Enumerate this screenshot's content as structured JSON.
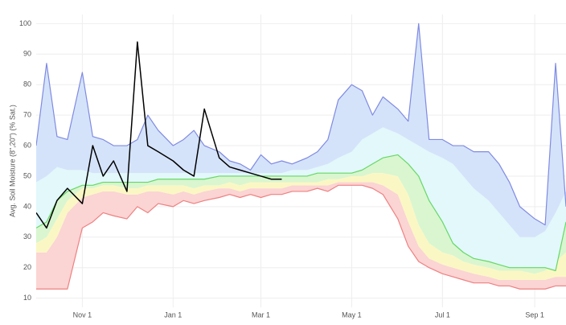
{
  "chart_data": {
    "type": "line",
    "y_label": "Avg. Soil Moisture (8\",20\") (% Sat.)",
    "x": [
      "Oct 1",
      "Oct 8",
      "Oct 15",
      "Oct 22",
      "Nov 1",
      "Nov 8",
      "Nov 15",
      "Nov 22",
      "Dec 1",
      "Dec 8",
      "Dec 15",
      "Dec 22",
      "Jan 1",
      "Jan 8",
      "Jan 15",
      "Jan 22",
      "Feb 1",
      "Feb 8",
      "Feb 15",
      "Feb 22",
      "Mar 1",
      "Mar 8",
      "Mar 15",
      "Mar 22",
      "Apr 1",
      "Apr 8",
      "Apr 15",
      "Apr 22",
      "May 1",
      "May 8",
      "May 15",
      "May 22",
      "Jun 1",
      "Jun 8",
      "Jun 15",
      "Jun 22",
      "Jul 1",
      "Jul 8",
      "Jul 15",
      "Jul 22",
      "Aug 1",
      "Aug 8",
      "Aug 15",
      "Aug 22",
      "Sep 1",
      "Sep 8",
      "Sep 15",
      "Sep 22"
    ],
    "ylim": [
      7,
      103
    ],
    "yticks": [
      10,
      20,
      30,
      40,
      50,
      60,
      70,
      80,
      90,
      100
    ],
    "xticks": [
      "Nov 1",
      "Jan 1",
      "Mar 1",
      "May 1",
      "Jul 1",
      "Sep 1"
    ],
    "grid": true,
    "series": [
      {
        "color": "#ef8080",
        "values": [
          13,
          13,
          13,
          13,
          33,
          35,
          38,
          37,
          36,
          40,
          38,
          41,
          40,
          42,
          41,
          42,
          43,
          44,
          43,
          44,
          43,
          44,
          44,
          45,
          45,
          46,
          45,
          47,
          47,
          47,
          46,
          44,
          36,
          27,
          22,
          20,
          18,
          17,
          16,
          15,
          15,
          14,
          14,
          13,
          13,
          13,
          14,
          14
        ]
      },
      {
        "fill": "#fbd4d4",
        "values": [
          25,
          25,
          30,
          38,
          43,
          44,
          45,
          45,
          44,
          44,
          45,
          45,
          44,
          45,
          44,
          45,
          46,
          46,
          45,
          46,
          46,
          46,
          46,
          47,
          47,
          47,
          47,
          48,
          48,
          48,
          48,
          47,
          44,
          35,
          27,
          23,
          21,
          20,
          19,
          18,
          17,
          16,
          16,
          16,
          16,
          16,
          17,
          17
        ]
      },
      {
        "fill": "#fbf7c4",
        "values": [
          28,
          30,
          36,
          42,
          46,
          46,
          47,
          47,
          46,
          46,
          47,
          47,
          47,
          47,
          46,
          47,
          47,
          48,
          47,
          48,
          48,
          48,
          48,
          48,
          48,
          48,
          49,
          49,
          50,
          50,
          51,
          51,
          50,
          44,
          34,
          28,
          25,
          24,
          22,
          21,
          20,
          19,
          19,
          19,
          18,
          19,
          22,
          25
        ]
      },
      {
        "color": "#66d866",
        "fill": "#d9f6d0",
        "values": [
          33,
          35,
          42,
          45,
          47,
          47,
          48,
          48,
          48,
          48,
          48,
          49,
          49,
          49,
          49,
          49,
          50,
          50,
          50,
          50,
          50,
          50,
          50,
          50,
          50,
          51,
          51,
          51,
          51,
          52,
          54,
          56,
          57,
          54,
          50,
          42,
          35,
          28,
          25,
          23,
          22,
          21,
          20,
          20,
          20,
          20,
          19,
          35
        ]
      },
      {
        "fill": "#e2f8fb",
        "values": [
          48,
          50,
          53,
          52,
          52,
          51,
          51,
          51,
          51,
          51,
          51,
          51,
          51,
          51,
          51,
          51,
          51,
          51,
          51,
          51,
          51,
          51,
          51,
          52,
          52,
          53,
          54,
          56,
          58,
          62,
          64,
          66,
          64,
          62,
          60,
          58,
          56,
          54,
          50,
          46,
          42,
          38,
          34,
          30,
          30,
          32,
          38,
          45
        ]
      },
      {
        "color": "#7f8ae2",
        "fill": "#d5e3fa",
        "values": [
          60,
          87,
          63,
          62,
          84,
          63,
          62,
          60,
          60,
          62,
          70,
          65,
          60,
          62,
          65,
          60,
          58,
          55,
          54,
          52,
          57,
          54,
          55,
          54,
          56,
          58,
          62,
          75,
          80,
          78,
          70,
          76,
          72,
          68,
          100,
          62,
          62,
          60,
          60,
          58,
          58,
          54,
          48,
          40,
          36,
          34,
          87,
          40
        ]
      },
      {
        "color": "#000000",
        "values": [
          38,
          33,
          42,
          46,
          41,
          60,
          50,
          55,
          45,
          94,
          60,
          58,
          55,
          52,
          50,
          72,
          56,
          53,
          52,
          51,
          50,
          49,
          49,
          null,
          null,
          null,
          null,
          null,
          null,
          null,
          null,
          null,
          null,
          null,
          null,
          null,
          null,
          null,
          null,
          null,
          null,
          null,
          null,
          null,
          null,
          null,
          null,
          null
        ]
      }
    ]
  }
}
